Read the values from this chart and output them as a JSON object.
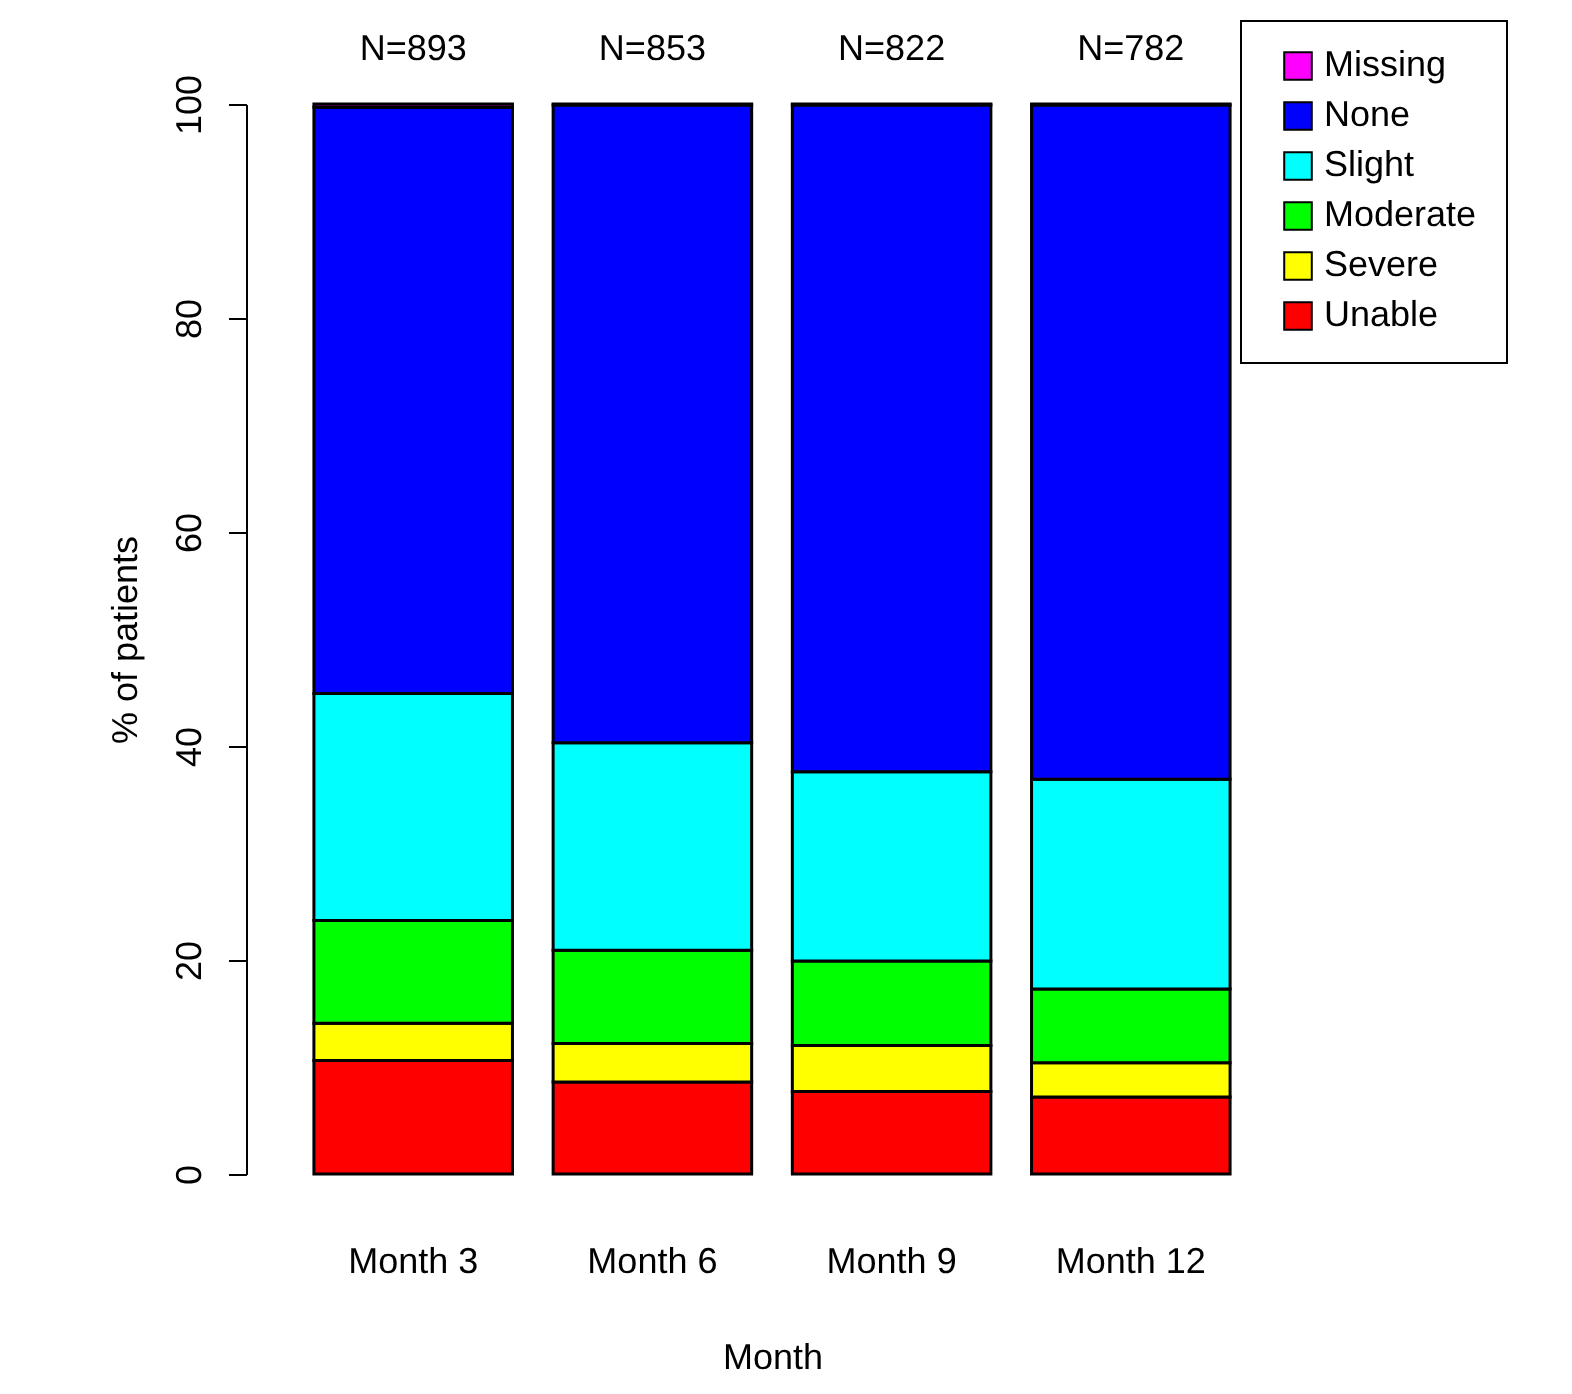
{
  "chart_data": {
    "type": "bar",
    "stacked": true,
    "xlabel": "Month",
    "ylabel": "% of patients",
    "categories": [
      "Month 3",
      "Month 6",
      "Month 9",
      "Month 12"
    ],
    "series": [
      {
        "name": "Unable",
        "color": "#ff0000",
        "values": [
          10.6,
          8.6,
          7.7,
          7.2
        ]
      },
      {
        "name": "Severe",
        "color": "#ffff00",
        "values": [
          3.5,
          3.6,
          4.3,
          3.2
        ]
      },
      {
        "name": "Moderate",
        "color": "#00ff00",
        "values": [
          9.6,
          8.7,
          7.9,
          6.9
        ]
      },
      {
        "name": "Slight",
        "color": "#00ffff",
        "values": [
          21.2,
          19.4,
          17.7,
          19.6
        ]
      },
      {
        "name": "None",
        "color": "#0000ff",
        "values": [
          54.8,
          59.6,
          62.3,
          63.0
        ]
      },
      {
        "name": "Missing",
        "color": "#ff00ff",
        "values": [
          0.3,
          0.1,
          0.1,
          0.1
        ]
      }
    ],
    "ylim": [
      0,
      100
    ],
    "yticks": [
      0,
      20,
      40,
      60,
      80,
      100
    ],
    "annotations": [
      "N=893",
      "N=853",
      "N=822",
      "N=782"
    ],
    "legend": "top right",
    "grid": false
  }
}
